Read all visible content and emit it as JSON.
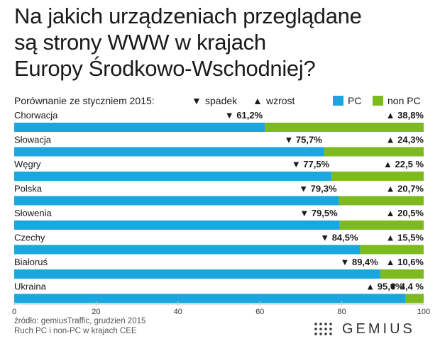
{
  "title": {
    "lines": [
      "Na jakich urządzeniach przeglądane",
      "są strony WWW w krajach",
      "Europy Środkowo-Wschodniej?"
    ]
  },
  "legend": {
    "comparison_label": "Porównanie ze styczniem 2015:",
    "down_label": "spadek",
    "up_label": "wzrost",
    "pc_label": "PC",
    "nonpc_label": "non PC",
    "down_symbol": "▼",
    "up_symbol": "▲"
  },
  "colors": {
    "pc": "#1aa6de",
    "nonpc": "#7dba1f",
    "gridline": "#c8c8c8"
  },
  "chart_data": {
    "type": "bar",
    "orientation": "horizontal",
    "stacked": true,
    "categories": [
      "Chorwacja",
      "Słowacja",
      "Węgry",
      "Polska",
      "Słowenia",
      "Czechy",
      "Białoruś",
      "Ukraina"
    ],
    "series": [
      {
        "name": "PC",
        "values": [
          61.2,
          75.7,
          77.5,
          79.3,
          79.5,
          84.5,
          89.4,
          95.6
        ],
        "labels": [
          "61,2%",
          "75,7%",
          "77,5%",
          "79,3%",
          "79,5%",
          "84,5%",
          "89,4%",
          "95,6%"
        ],
        "trend": [
          "down",
          "down",
          "down",
          "down",
          "down",
          "down",
          "down",
          "up"
        ]
      },
      {
        "name": "non PC",
        "values": [
          38.8,
          24.3,
          22.5,
          20.7,
          20.5,
          15.5,
          10.6,
          4.4
        ],
        "labels": [
          "38,8%",
          "24,3%",
          "22,5 %",
          "20,7%",
          "20,5%",
          "15,5%",
          "10,6%",
          "4,4 %"
        ],
        "trend": [
          "up",
          "up",
          "up",
          "up",
          "up",
          "up",
          "up",
          "down"
        ]
      }
    ],
    "xlim": [
      0,
      100
    ],
    "xticks": [
      "0",
      "20",
      "40",
      "60",
      "80",
      "100"
    ],
    "grid": true
  },
  "footer": {
    "source_line1": "źródło: gemiusTraffic, grudzień 2015",
    "source_line2": "Ruch PC i non-PC w krajach CEE"
  },
  "logo": {
    "text": "GEMIUS",
    "icon": "dots-grid-icon"
  }
}
